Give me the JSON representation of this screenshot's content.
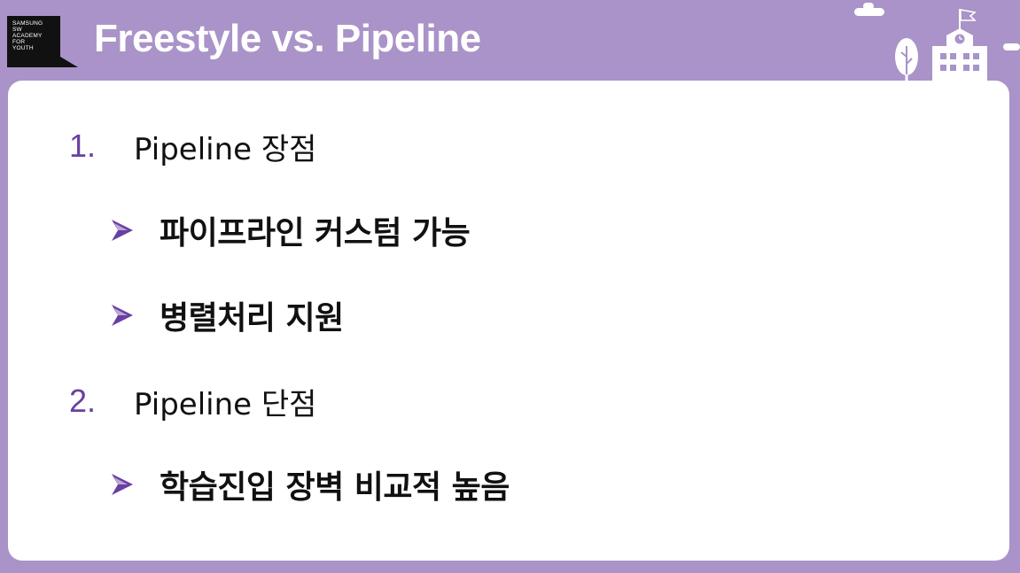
{
  "logo": {
    "text": "SAMSUNG\nSW\nACADEMY\nFOR\nYOUTH"
  },
  "header": {
    "title": "Freestyle vs. Pipeline"
  },
  "sections": [
    {
      "number": "1.",
      "title": "Pipeline 장점",
      "bullets": [
        "파이프라인 커스텀 가능",
        "병렬처리 지원"
      ]
    },
    {
      "number": "2.",
      "title": "Pipeline 단점",
      "bullets": [
        "학습진입 장벽 비교적 높음"
      ]
    }
  ],
  "colors": {
    "background": "#a993c8",
    "accent": "#6a3fa3",
    "text": "#111111"
  }
}
